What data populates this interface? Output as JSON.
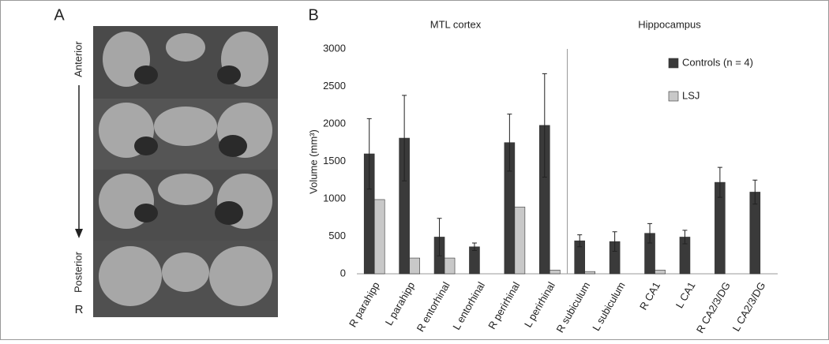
{
  "panel_a": {
    "label": "A",
    "anterior": "Anterior",
    "posterior": "Posterior",
    "side": "R"
  },
  "chart_data": {
    "type": "bar",
    "panel_label": "B",
    "annotations": [
      "MTL cortex",
      "Hippocampus"
    ],
    "y_label": "Volume (mm³)",
    "categories": [
      "R parahipp",
      "L parahipp",
      "R entorhinal",
      "L entorhinal",
      "R perirhinal",
      "L perirhinal",
      "R subiculum",
      "L subiculum",
      "R CA1",
      "L CA1",
      "R CA2/3/DG",
      "L CA2/3/DG"
    ],
    "series": [
      {
        "name": "Controls (n = 4)",
        "color": "#3a3a3a",
        "values": [
          1600,
          1810,
          490,
          360,
          1750,
          1980,
          440,
          430,
          540,
          490,
          1220,
          1090
        ],
        "errors": [
          470,
          570,
          250,
          50,
          380,
          690,
          80,
          130,
          130,
          90,
          200,
          160
        ]
      },
      {
        "name": "LSJ",
        "color": "#c8c8c8",
        "values": [
          990,
          210,
          210,
          0,
          890,
          50,
          30,
          0,
          50,
          0,
          0,
          0
        ]
      }
    ],
    "ylim": [
      0,
      3000
    ],
    "yticks": [
      0,
      500,
      1000,
      1500,
      2000,
      2500,
      3000
    ],
    "grid": false,
    "legend": "upper right"
  }
}
